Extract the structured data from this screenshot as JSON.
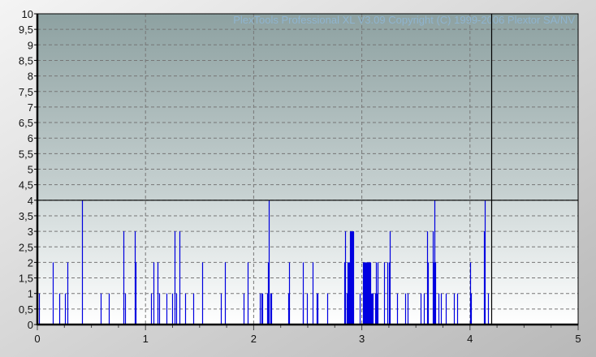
{
  "watermark": "PlexTools Professional XL V3.09 Copyright (C) 1999-2006 Plextor SA/NV",
  "chart_data": {
    "type": "bar",
    "title": "",
    "xlabel": "",
    "ylabel": "",
    "xlim": [
      0,
      5
    ],
    "ylim": [
      0,
      10
    ],
    "grid": true,
    "x_ticks": [
      "0",
      "1",
      "2",
      "3",
      "4",
      "5"
    ],
    "y_ticks": [
      "0",
      "0,5",
      "1",
      "1,5",
      "2",
      "2,5",
      "3",
      "3,5",
      "4",
      "4,5",
      "5",
      "5,5",
      "6",
      "6,5",
      "7",
      "7,5",
      "8",
      "8,5",
      "9",
      "9,5",
      "10"
    ],
    "threshold_y": 4,
    "marker_x": 4.2,
    "bar_color": "#0000e0",
    "upper_zone_colors": [
      "#8da1a1",
      "#c9d3d3"
    ],
    "lower_zone_colors": [
      "#d0d9d9",
      "#ffffff"
    ],
    "points": [
      [
        0.015,
        1
      ],
      [
        0.143,
        2
      ],
      [
        0.203,
        1
      ],
      [
        0.255,
        1
      ],
      [
        0.278,
        2
      ],
      [
        0.413,
        4
      ],
      [
        0.586,
        1
      ],
      [
        0.661,
        1
      ],
      [
        0.796,
        3
      ],
      [
        0.811,
        1
      ],
      [
        0.901,
        3
      ],
      [
        0.908,
        2
      ],
      [
        1.051,
        1
      ],
      [
        1.074,
        2
      ],
      [
        1.111,
        2
      ],
      [
        1.126,
        1
      ],
      [
        1.194,
        1
      ],
      [
        1.246,
        1
      ],
      [
        1.269,
        3
      ],
      [
        1.284,
        1
      ],
      [
        1.314,
        3
      ],
      [
        1.366,
        1
      ],
      [
        1.441,
        1
      ],
      [
        1.524,
        2
      ],
      [
        1.697,
        1
      ],
      [
        1.734,
        2
      ],
      [
        1.907,
        1
      ],
      [
        1.944,
        2
      ],
      [
        2.057,
        1
      ],
      [
        2.072,
        1
      ],
      [
        2.08,
        1
      ],
      [
        2.125,
        1
      ],
      [
        2.132,
        2
      ],
      [
        2.14,
        4
      ],
      [
        2.155,
        1
      ],
      [
        2.162,
        1
      ],
      [
        2.32,
        1
      ],
      [
        2.327,
        2
      ],
      [
        2.453,
        2
      ],
      [
        2.458,
        1
      ],
      [
        2.493,
        1
      ],
      [
        2.545,
        2
      ],
      [
        2.583,
        1
      ],
      [
        2.588,
        1
      ],
      [
        2.68,
        1
      ],
      [
        2.838,
        2
      ],
      [
        2.845,
        3
      ],
      [
        2.86,
        1
      ],
      [
        2.868,
        2
      ],
      [
        2.875,
        2
      ],
      [
        2.883,
        2
      ],
      [
        2.89,
        3
      ],
      [
        2.898,
        3
      ],
      [
        2.905,
        3
      ],
      [
        2.913,
        3
      ],
      [
        2.92,
        3
      ],
      [
        2.98,
        1
      ],
      [
        3.01,
        2
      ],
      [
        3.018,
        2
      ],
      [
        3.025,
        2
      ],
      [
        3.033,
        2
      ],
      [
        3.04,
        2
      ],
      [
        3.048,
        2
      ],
      [
        3.055,
        2
      ],
      [
        3.063,
        2
      ],
      [
        3.07,
        2
      ],
      [
        3.078,
        2
      ],
      [
        3.086,
        1
      ],
      [
        3.093,
        1
      ],
      [
        3.1,
        1
      ],
      [
        3.123,
        1
      ],
      [
        3.131,
        2
      ],
      [
        3.138,
        1
      ],
      [
        3.146,
        2
      ],
      [
        3.206,
        2
      ],
      [
        3.236,
        2
      ],
      [
        3.251,
        2
      ],
      [
        3.258,
        3
      ],
      [
        3.326,
        1
      ],
      [
        3.401,
        1
      ],
      [
        3.423,
        1
      ],
      [
        3.544,
        1
      ],
      [
        3.574,
        1
      ],
      [
        3.604,
        3
      ],
      [
        3.611,
        2
      ],
      [
        3.656,
        3
      ],
      [
        3.664,
        2
      ],
      [
        3.671,
        4
      ],
      [
        3.679,
        2
      ],
      [
        3.709,
        1
      ],
      [
        3.731,
        1
      ],
      [
        3.776,
        1
      ],
      [
        3.851,
        1
      ],
      [
        3.881,
        1
      ],
      [
        4.002,
        2
      ],
      [
        4.009,
        1
      ],
      [
        4.129,
        3
      ],
      [
        4.137,
        4
      ],
      [
        4.167,
        1
      ]
    ]
  }
}
